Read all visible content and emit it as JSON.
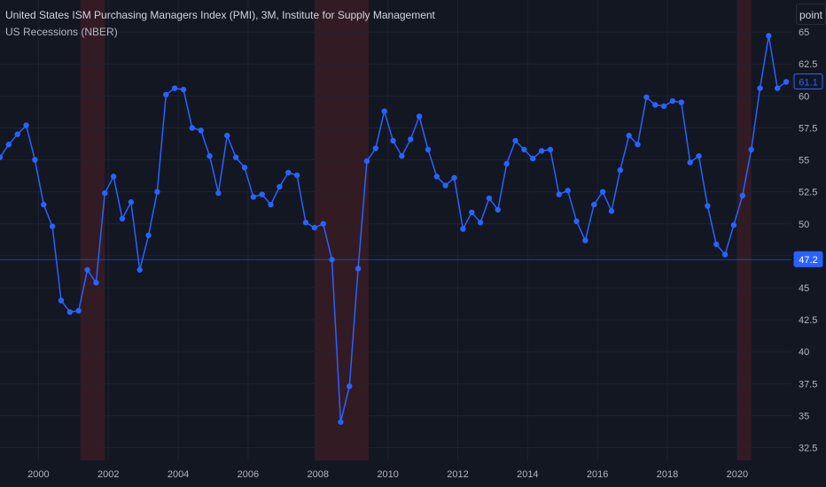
{
  "header": {
    "title": "United States ISM Purchasing Managers Index (PMI), 3M, Institute for Supply Management",
    "subtitle": "US Recessions (NBER)"
  },
  "toolbar": {
    "scale_label": "point"
  },
  "colors": {
    "background": "#131722",
    "line": "#2962ff",
    "grid": "#1e2330",
    "recession": "#3a1c24",
    "axis_text": "#b2b5be",
    "badge_bg": "#2962ff"
  },
  "chart_data": {
    "type": "line",
    "title": "United States ISM Purchasing Managers Index (PMI), 3M, Institute for Supply Management",
    "series": [
      {
        "name": "ISM PMI (3M)",
        "x": [
          1998.9,
          1999.15,
          1999.4,
          1999.65,
          1999.9,
          2000.15,
          2000.4,
          2000.65,
          2000.9,
          2001.15,
          2001.4,
          2001.65,
          2001.9,
          2002.15,
          2002.4,
          2002.65,
          2002.9,
          2003.15,
          2003.4,
          2003.65,
          2003.9,
          2004.15,
          2004.4,
          2004.65,
          2004.9,
          2005.15,
          2005.4,
          2005.65,
          2005.9,
          2006.15,
          2006.4,
          2006.65,
          2006.9,
          2007.15,
          2007.4,
          2007.65,
          2007.9,
          2008.15,
          2008.4,
          2008.65,
          2008.9,
          2009.15,
          2009.4,
          2009.65,
          2009.9,
          2010.15,
          2010.4,
          2010.65,
          2010.9,
          2011.15,
          2011.4,
          2011.65,
          2011.9,
          2012.15,
          2012.4,
          2012.65,
          2012.9,
          2013.15,
          2013.4,
          2013.65,
          2013.9,
          2014.15,
          2014.4,
          2014.65,
          2014.9,
          2015.15,
          2015.4,
          2015.65,
          2015.9,
          2016.15,
          2016.4,
          2016.65,
          2016.9,
          2017.15,
          2017.4,
          2017.65,
          2017.9,
          2018.15,
          2018.4,
          2018.65,
          2018.9,
          2019.15,
          2019.4,
          2019.65,
          2019.9,
          2020.15,
          2020.4,
          2020.65,
          2020.9,
          2021.15,
          2021.4
        ],
        "y": [
          55.2,
          56.2,
          57.0,
          57.7,
          55.0,
          51.5,
          49.8,
          44.0,
          43.1,
          43.2,
          46.4,
          45.4,
          52.4,
          53.7,
          50.4,
          51.7,
          46.4,
          49.1,
          52.5,
          60.1,
          60.6,
          60.5,
          57.5,
          57.3,
          55.3,
          52.4,
          56.9,
          55.2,
          54.4,
          52.1,
          52.3,
          51.5,
          52.9,
          54.0,
          53.8,
          50.1,
          49.7,
          50.0,
          47.2,
          34.5,
          37.3,
          46.5,
          54.9,
          55.9,
          58.8,
          56.5,
          55.3,
          56.6,
          58.4,
          55.8,
          53.7,
          53.0,
          53.6,
          49.6,
          50.9,
          50.1,
          52.0,
          51.1,
          54.7,
          56.5,
          55.8,
          55.1,
          55.7,
          55.8,
          52.3,
          52.6,
          50.2,
          48.7,
          51.5,
          52.5,
          51.0,
          54.2,
          56.9,
          56.2,
          59.9,
          59.3,
          59.2,
          59.6,
          59.5,
          54.8,
          55.3,
          51.4,
          48.4,
          47.6,
          49.9,
          52.2,
          55.8,
          60.6,
          64.7,
          60.6,
          61.1
        ]
      }
    ],
    "recessions": [
      [
        2001.2,
        2001.9
      ],
      [
        2007.9,
        2009.45
      ],
      [
        2020.0,
        2020.4
      ]
    ],
    "x_ticks": [
      "2000",
      "2002",
      "2004",
      "2006",
      "2008",
      "2010",
      "2012",
      "2014",
      "2016",
      "2018",
      "2020"
    ],
    "x_tick_values": [
      2000,
      2002,
      2004,
      2006,
      2008,
      2010,
      2012,
      2014,
      2016,
      2018,
      2020
    ],
    "y_ticks": [
      "32.5",
      "35",
      "37.5",
      "40",
      "42.5",
      "45",
      "47.5",
      "50",
      "52.5",
      "55",
      "57.5",
      "60",
      "62.5",
      "65"
    ],
    "y_tick_values": [
      32.5,
      35,
      37.5,
      40,
      42.5,
      45,
      47.5,
      50,
      52.5,
      55,
      57.5,
      60,
      62.5,
      65
    ],
    "xlim": [
      1998.9,
      2021.55
    ],
    "ylim": [
      31.5,
      67.5
    ],
    "markers": [
      {
        "label": "61.1",
        "value": 61.1,
        "style": "outline"
      },
      {
        "label": "47.2",
        "value": 47.2,
        "style": "filled",
        "crosshair": true
      }
    ],
    "grid": true
  }
}
